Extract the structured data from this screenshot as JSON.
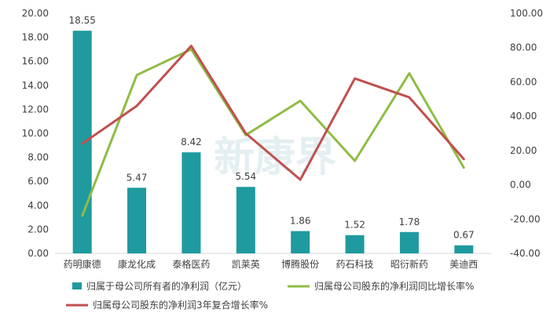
{
  "chart_data": {
    "type": "bar",
    "categories": [
      "药明康德",
      "康龙化成",
      "泰格医药",
      "凯莱英",
      "博腾股份",
      "药石科技",
      "昭衍新药",
      "美迪西"
    ],
    "series": [
      {
        "name": "归属于母公司所有者的净利润（亿元）",
        "type": "bar",
        "axis": "left",
        "color": "#1f9a9e",
        "values": [
          18.55,
          5.47,
          8.42,
          5.54,
          1.86,
          1.52,
          1.78,
          0.67
        ],
        "labels": [
          "18.55",
          "5.47",
          "8.42",
          "5.54",
          "1.86",
          "1.52",
          "1.78",
          "0.67"
        ]
      },
      {
        "name": "归属母公司股东的净利润同比增长率%",
        "type": "line",
        "axis": "right",
        "color": "#8fbc45",
        "values": [
          -18,
          64,
          79,
          29,
          49,
          14,
          65,
          10
        ]
      },
      {
        "name": "归属母公司股东的净利润3年复合增长率%",
        "type": "line",
        "axis": "right",
        "color": "#c0504d",
        "values": [
          24,
          46,
          81,
          30,
          3,
          62,
          51,
          15
        ]
      }
    ],
    "y_left": {
      "min": 0,
      "max": 20,
      "step": 2,
      "tick_labels": [
        "0.00",
        "2.00",
        "4.00",
        "6.00",
        "8.00",
        "10.00",
        "12.00",
        "14.00",
        "16.00",
        "18.00",
        "20.00"
      ]
    },
    "y_right": {
      "min": -40,
      "max": 100,
      "step": 20,
      "tick_labels": [
        "-40.00",
        "-20.00",
        "0.00",
        "20.00",
        "40.00",
        "60.00",
        "80.00",
        "100.00"
      ]
    },
    "legend": {
      "position": "bottom",
      "items": [
        "归属于母公司所有者的净利润（亿元）",
        "归属母公司股东的净利润同比增长率%",
        "归属母公司股东的净利润3年复合增长率%"
      ]
    },
    "watermark": "新康界",
    "grid": false
  }
}
